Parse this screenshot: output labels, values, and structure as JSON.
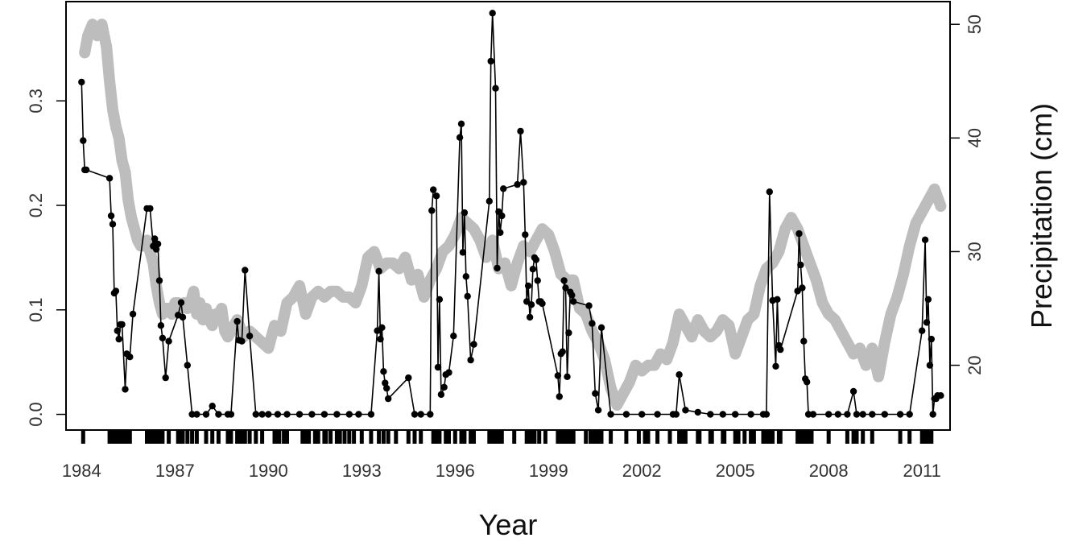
{
  "chart_data": {
    "type": "line",
    "title": "",
    "xlabel": "Year",
    "ylabel_left": "",
    "ylabel_right": "Precipitation (cm)",
    "xlim": [
      1983.5,
      2011.9
    ],
    "ylim_left": [
      -0.015,
      0.395
    ],
    "ylim_right": [
      14.3,
      52.0
    ],
    "x_ticks": [
      1984,
      1987,
      1990,
      1993,
      1996,
      1999,
      2002,
      2005,
      2008,
      2011
    ],
    "y_left_ticks": [
      0.0,
      0.1,
      0.2,
      0.3
    ],
    "y_left_tick_labels": [
      "0.0",
      "0.1",
      "0.2",
      "0.3"
    ],
    "y_right_ticks": [
      20,
      30,
      40,
      50
    ],
    "grid": false,
    "legend": "none",
    "series": [
      {
        "axis": "right",
        "style": "thick-line",
        "color": "#bdbdbd",
        "x": [
          1984.1,
          1984.2,
          1984.35,
          1984.5,
          1984.65,
          1984.8,
          1984.9,
          1985.0,
          1985.1,
          1985.2,
          1985.3,
          1985.4,
          1985.5,
          1985.6,
          1985.7,
          1985.8,
          1985.9,
          1986.0,
          1986.1,
          1986.2,
          1986.3,
          1986.4,
          1986.5,
          1986.6,
          1986.7,
          1986.8,
          1986.9,
          1987.0,
          1987.1,
          1987.2,
          1987.3,
          1987.4,
          1987.5,
          1987.6,
          1987.7,
          1987.8,
          1987.9,
          1988.0,
          1988.1,
          1988.2,
          1988.3,
          1988.4,
          1988.5,
          1988.6,
          1988.7,
          1988.8,
          1988.9,
          1989.0,
          1989.2,
          1989.4,
          1989.6,
          1989.8,
          1990.0,
          1990.2,
          1990.4,
          1990.6,
          1990.8,
          1991.0,
          1991.2,
          1991.4,
          1991.6,
          1991.8,
          1992.0,
          1992.2,
          1992.4,
          1992.6,
          1992.8,
          1993.0,
          1993.2,
          1993.4,
          1993.6,
          1993.8,
          1994.0,
          1994.2,
          1994.4,
          1994.6,
          1994.8,
          1995.0,
          1995.2,
          1995.4,
          1995.6,
          1995.8,
          1996.0,
          1996.2,
          1996.4,
          1996.6,
          1996.8,
          1997.0,
          1997.2,
          1997.4,
          1997.6,
          1997.8,
          1998.0,
          1998.2,
          1998.4,
          1998.6,
          1998.8,
          1999.0,
          1999.2,
          1999.4,
          1999.6,
          1999.8,
          2000.0,
          2000.2,
          2000.4,
          2000.6,
          2000.8,
          2001.0,
          2001.2,
          2001.4,
          2001.6,
          2001.8,
          2002.0,
          2002.2,
          2002.4,
          2002.6,
          2002.8,
          2003.0,
          2003.2,
          2003.4,
          2003.6,
          2003.8,
          2004.0,
          2004.2,
          2004.4,
          2004.6,
          2004.8,
          2005.0,
          2005.2,
          2005.4,
          2005.6,
          2005.8,
          2006.0,
          2006.2,
          2006.4,
          2006.6,
          2006.8,
          2007.0,
          2007.2,
          2007.4,
          2007.6,
          2007.8,
          2008.0,
          2008.2,
          2008.4,
          2008.6,
          2008.8,
          2009.0,
          2009.2,
          2009.4,
          2009.6,
          2009.8,
          2010.0,
          2010.2,
          2010.4,
          2010.6,
          2010.8,
          2011.0,
          2011.2,
          2011.4,
          2011.6
        ],
        "y": [
          47.5,
          49.0,
          50.0,
          49.0,
          50.0,
          48.0,
          45.0,
          42.5,
          41.0,
          40.0,
          38.0,
          37.0,
          34.5,
          33.0,
          32.0,
          31.0,
          30.5,
          30.5,
          31.0,
          30.0,
          29.0,
          27.0,
          25.5,
          24.5,
          25.0,
          25.0,
          24.5,
          25.5,
          25.5,
          25.0,
          25.5,
          25.0,
          25.5,
          26.5,
          24.5,
          25.5,
          24.0,
          25.0,
          24.0,
          23.5,
          24.5,
          24.5,
          25.0,
          23.0,
          22.5,
          23.0,
          23.5,
          24.0,
          22.5,
          23.0,
          22.5,
          22.0,
          21.5,
          23.5,
          23.0,
          25.5,
          26.0,
          27.0,
          24.5,
          26.0,
          26.5,
          26.0,
          26.5,
          26.5,
          26.0,
          26.0,
          25.5,
          27.0,
          29.5,
          30.0,
          28.5,
          29.0,
          29.0,
          28.5,
          29.5,
          27.5,
          28.0,
          26.0,
          27.5,
          28.5,
          30.0,
          30.5,
          31.5,
          33.0,
          32.5,
          32.0,
          31.0,
          29.5,
          31.0,
          28.5,
          29.0,
          27.0,
          29.0,
          30.5,
          30.0,
          31.0,
          32.0,
          31.5,
          30.0,
          28.0,
          27.5,
          27.5,
          25.0,
          24.5,
          23.0,
          22.0,
          20.5,
          18.0,
          16.5,
          17.5,
          18.5,
          20.0,
          19.5,
          20.0,
          20.0,
          21.0,
          20.5,
          22.0,
          24.5,
          23.5,
          22.5,
          24.0,
          23.0,
          22.5,
          23.0,
          24.0,
          23.5,
          21.0,
          22.5,
          24.0,
          24.5,
          27.0,
          28.5,
          29.0,
          30.0,
          32.0,
          33.0,
          32.0,
          30.5,
          29.0,
          27.5,
          25.5,
          24.5,
          24.0,
          23.0,
          22.0,
          21.0,
          21.5,
          20.0,
          21.5,
          19.0,
          22.0,
          24.5,
          26.0,
          28.0,
          30.5,
          32.5,
          33.5,
          34.5,
          35.5,
          34.0
        ],
        "stroke_width": 14
      },
      {
        "axis": "left",
        "style": "line-points",
        "color": "#000000",
        "x": [
          1984.0,
          1984.05,
          1984.1,
          1984.15,
          1984.9,
          1984.95,
          1985.0,
          1985.05,
          1985.1,
          1985.15,
          1985.2,
          1985.25,
          1985.3,
          1985.4,
          1985.45,
          1985.55,
          1985.65,
          1986.1,
          1986.2,
          1986.3,
          1986.35,
          1986.4,
          1986.45,
          1986.5,
          1986.55,
          1986.6,
          1986.7,
          1986.8,
          1987.1,
          1987.2,
          1987.25,
          1987.4,
          1987.55,
          1987.7,
          1988.0,
          1988.2,
          1988.4,
          1988.7,
          1988.8,
          1989.0,
          1989.05,
          1989.15,
          1989.25,
          1989.4,
          1989.6,
          1989.8,
          1990.0,
          1990.3,
          1990.6,
          1991.0,
          1991.4,
          1991.8,
          1992.2,
          1992.6,
          1992.9,
          1993.3,
          1993.5,
          1993.55,
          1993.6,
          1993.65,
          1993.7,
          1993.75,
          1993.8,
          1993.85,
          1994.5,
          1994.7,
          1994.9,
          1995.2,
          1995.25,
          1995.3,
          1995.4,
          1995.45,
          1995.5,
          1995.55,
          1995.65,
          1995.7,
          1995.8,
          1995.95,
          1996.15,
          1996.2,
          1996.25,
          1996.3,
          1996.35,
          1996.4,
          1996.5,
          1996.6,
          1997.1,
          1997.15,
          1997.2,
          1997.3,
          1997.35,
          1997.4,
          1997.45,
          1997.5,
          1997.55,
          1998.0,
          1998.1,
          1998.2,
          1998.25,
          1998.3,
          1998.35,
          1998.4,
          1998.45,
          1998.5,
          1998.55,
          1998.6,
          1998.65,
          1998.7,
          1998.75,
          1998.8,
          1999.3,
          1999.35,
          1999.4,
          1999.45,
          1999.5,
          1999.55,
          1999.6,
          1999.65,
          1999.7,
          1999.75,
          1999.8,
          2000.3,
          2000.4,
          2000.5,
          2000.6,
          2000.7,
          2001.0,
          2001.5,
          2002.0,
          2002.5,
          2003.0,
          2003.1,
          2003.2,
          2003.4,
          2003.8,
          2004.2,
          2004.6,
          2005.0,
          2005.5,
          2005.9,
          2006.0,
          2006.1,
          2006.2,
          2006.3,
          2006.35,
          2006.4,
          2006.45,
          2007.0,
          2007.05,
          2007.1,
          2007.15,
          2007.2,
          2007.25,
          2007.3,
          2007.35,
          2007.5,
          2008.0,
          2008.3,
          2008.6,
          2008.8,
          2008.9,
          2009.1,
          2009.4,
          2009.8,
          2010.3,
          2010.6,
          2011.0,
          2011.1,
          2011.15,
          2011.2,
          2011.25,
          2011.3,
          2011.35,
          2011.4,
          2011.45,
          2011.5,
          2011.6
        ],
        "y": [
          0.318,
          0.262,
          0.234,
          0.234,
          0.226,
          0.19,
          0.182,
          0.116,
          0.118,
          0.08,
          0.072,
          0.086,
          0.086,
          0.024,
          0.058,
          0.055,
          0.096,
          0.197,
          0.197,
          0.161,
          0.168,
          0.158,
          0.163,
          0.128,
          0.085,
          0.073,
          0.035,
          0.07,
          0.095,
          0.107,
          0.093,
          0.047,
          0.0,
          0.0,
          0.0,
          0.008,
          0.0,
          0.0,
          0.0,
          0.089,
          0.071,
          0.07,
          0.138,
          0.075,
          0.0,
          0.0,
          0.0,
          0.0,
          0.0,
          0.0,
          0.0,
          0.0,
          0.0,
          0.0,
          0.0,
          0.0,
          0.08,
          0.137,
          0.072,
          0.083,
          0.041,
          0.03,
          0.025,
          0.015,
          0.035,
          0.0,
          0.0,
          0.0,
          0.195,
          0.215,
          0.209,
          0.045,
          0.11,
          0.019,
          0.026,
          0.038,
          0.04,
          0.075,
          0.265,
          0.278,
          0.155,
          0.193,
          0.132,
          0.113,
          0.052,
          0.067,
          0.204,
          0.338,
          0.384,
          0.312,
          0.14,
          0.194,
          0.174,
          0.19,
          0.216,
          0.22,
          0.271,
          0.222,
          0.172,
          0.108,
          0.123,
          0.093,
          0.105,
          0.139,
          0.15,
          0.148,
          0.128,
          0.108,
          0.108,
          0.106,
          0.037,
          0.017,
          0.058,
          0.06,
          0.128,
          0.121,
          0.036,
          0.078,
          0.117,
          0.114,
          0.108,
          0.104,
          0.087,
          0.02,
          0.004,
          0.083,
          0.0,
          0.0,
          0.0,
          0.0,
          0.0,
          0.0,
          0.038,
          0.004,
          0.002,
          0.0,
          0.0,
          0.0,
          0.0,
          0.0,
          0.0,
          0.213,
          0.109,
          0.046,
          0.11,
          0.066,
          0.062,
          0.118,
          0.173,
          0.143,
          0.121,
          0.07,
          0.034,
          0.031,
          0.0,
          0.0,
          0.0,
          0.0,
          0.0,
          0.022,
          0.0,
          0.0,
          0.0,
          0.0,
          0.0,
          0.0,
          0.08,
          0.167,
          0.088,
          0.11,
          0.047,
          0.072,
          0.0,
          0.015,
          0.015,
          0.018,
          0.018
        ],
        "point_radius": 4.2
      }
    ],
    "rug": [
      1984.05,
      1984.9,
      1985.0,
      1985.05,
      1985.1,
      1985.15,
      1985.2,
      1985.3,
      1985.4,
      1985.45,
      1985.55,
      1986.1,
      1986.2,
      1986.3,
      1986.4,
      1986.5,
      1986.6,
      1986.8,
      1987.1,
      1987.2,
      1987.25,
      1987.4,
      1987.55,
      1987.7,
      1988.0,
      1988.2,
      1988.4,
      1988.7,
      1988.8,
      1989.0,
      1989.05,
      1989.15,
      1989.25,
      1989.4,
      1989.6,
      1989.8,
      1990.2,
      1990.3,
      1990.35,
      1990.5,
      1990.6,
      1991.1,
      1991.2,
      1991.3,
      1991.5,
      1991.6,
      1991.8,
      1991.85,
      1992.0,
      1992.2,
      1992.3,
      1992.45,
      1992.6,
      1992.75,
      1993.0,
      1993.3,
      1993.55,
      1993.7,
      1993.85,
      1994.1,
      1994.5,
      1994.7,
      1994.9,
      1995.3,
      1995.4,
      1995.5,
      1995.7,
      1995.8,
      1996.0,
      1996.2,
      1996.3,
      1996.5,
      1996.6,
      1997.1,
      1997.2,
      1997.3,
      1997.4,
      1997.5,
      1997.9,
      1998.3,
      1998.4,
      1998.45,
      1998.55,
      1998.7,
      1998.9,
      1999.3,
      1999.4,
      1999.45,
      1999.5,
      1999.55,
      1999.65,
      1999.7,
      1999.8,
      2000.2,
      2000.35,
      2000.45,
      2000.55,
      2000.65,
      2000.7,
      2001.0,
      2001.5,
      2001.9,
      2002.1,
      2002.2,
      2002.5,
      2002.9,
      2003.2,
      2003.3,
      2003.4,
      2003.8,
      2003.85,
      2004.2,
      2004.25,
      2004.6,
      2004.65,
      2005.0,
      2005.1,
      2005.3,
      2005.5,
      2005.6,
      2005.9,
      2006.0,
      2006.1,
      2006.2,
      2006.4,
      2006.45,
      2007.0,
      2007.1,
      2007.2,
      2007.3,
      2007.4,
      2007.45,
      2008.0,
      2008.6,
      2008.8,
      2008.9,
      2009.1,
      2009.4,
      2010.3,
      2010.6,
      2011.0,
      2011.1,
      2011.15,
      2011.2,
      2011.25,
      2011.3
    ]
  }
}
